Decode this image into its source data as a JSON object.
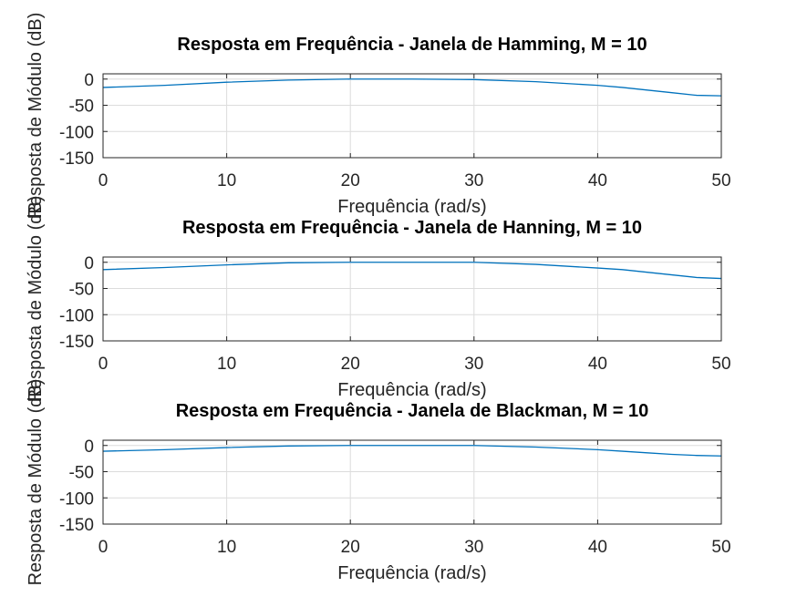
{
  "figure_background": "#ffffff",
  "chart_data": [
    {
      "type": "line",
      "title": "Resposta em Frequência - Janela de Hamming, M = 10",
      "xlabel": "Frequência (rad/s)",
      "ylabel": "Resposta de Módulo (dB)",
      "xlim": [
        0,
        50
      ],
      "ylim": [
        -150,
        10
      ],
      "xticks": [
        0,
        10,
        20,
        30,
        40,
        50
      ],
      "yticks": [
        0,
        -50,
        -100,
        -150
      ],
      "grid": true,
      "line_color": "#0072bd",
      "series": [
        {
          "x": [
            0,
            5,
            10,
            15,
            20,
            25,
            30,
            35,
            40,
            42,
            44,
            46,
            48,
            50
          ],
          "values": [
            -16,
            -12,
            -6,
            -2,
            0,
            0,
            -1,
            -5,
            -12,
            -16,
            -21,
            -26,
            -31,
            -32
          ]
        }
      ]
    },
    {
      "type": "line",
      "title": "Resposta em Frequência - Janela de Hanning, M = 10",
      "xlabel": "Frequência (rad/s)",
      "ylabel": "Resposta de Módulo (dB)",
      "xlim": [
        0,
        50
      ],
      "ylim": [
        -150,
        10
      ],
      "xticks": [
        0,
        10,
        20,
        30,
        40,
        50
      ],
      "yticks": [
        0,
        -50,
        -100,
        -150
      ],
      "grid": true,
      "line_color": "#0072bd",
      "series": [
        {
          "x": [
            0,
            5,
            10,
            15,
            20,
            25,
            30,
            35,
            40,
            42,
            44,
            46,
            48,
            50
          ],
          "values": [
            -14,
            -10,
            -5,
            -1,
            0,
            0,
            0,
            -4,
            -11,
            -14,
            -19,
            -24,
            -29,
            -31
          ]
        }
      ]
    },
    {
      "type": "line",
      "title": "Resposta em Frequência - Janela de Blackman, M = 10",
      "xlabel": "Frequência (rad/s)",
      "ylabel": "Resposta de Módulo (dB)",
      "xlim": [
        0,
        50
      ],
      "ylim": [
        -150,
        10
      ],
      "xticks": [
        0,
        10,
        20,
        30,
        40,
        50
      ],
      "yticks": [
        0,
        -50,
        -100,
        -150
      ],
      "grid": true,
      "line_color": "#0072bd",
      "series": [
        {
          "x": [
            0,
            5,
            10,
            15,
            20,
            25,
            30,
            35,
            40,
            42,
            44,
            46,
            48,
            50
          ],
          "values": [
            -11,
            -8,
            -4,
            -1,
            0,
            0,
            0,
            -3,
            -8,
            -11,
            -14,
            -17,
            -19,
            -20
          ]
        }
      ]
    }
  ]
}
